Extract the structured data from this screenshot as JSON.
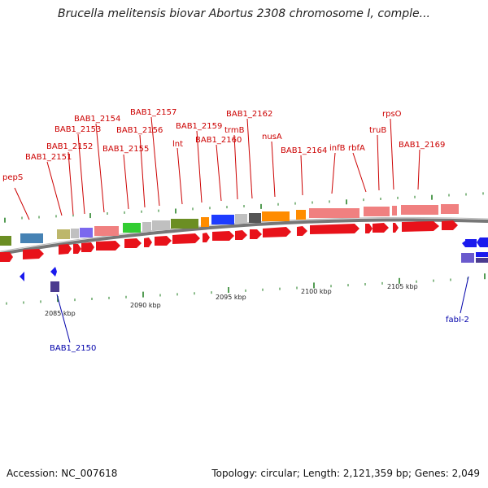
{
  "title": "Brucella melitensis biovar Abortus 2308 chromosome I, comple...",
  "footer": {
    "accession": "Accession: NC_007618",
    "topology": "Topology: circular; Length: 2,121,359 bp; Genes: 2,049"
  },
  "colors": {
    "forward_cds": "#e8121a",
    "reverse_cds": "#1a1aee",
    "label_forward": "#cc0000",
    "label_reverse": "#0000aa",
    "backbone": "#888888",
    "tick": "#1a7a1a"
  },
  "scale": {
    "labels": [
      "2085 kbp",
      "2090 kbp",
      "2095 kbp",
      "2100 kbp",
      "2105 kbp"
    ]
  },
  "genes_forward": [
    "pepS",
    "BAB1_2151",
    "BAB1_2152",
    "BAB1_2153",
    "BAB1_2154",
    "BAB1_2155",
    "BAB1_2156",
    "BAB1_2157",
    "lnt",
    "BAB1_2159",
    "BAB1_2160",
    "trmB",
    "BAB1_2162",
    "nusA",
    "BAB1_2164",
    "infB",
    "rbfA",
    "truB",
    "rpsO",
    "BAB1_2169"
  ],
  "genes_reverse": [
    "BAB1_2150",
    "fabI-2"
  ]
}
